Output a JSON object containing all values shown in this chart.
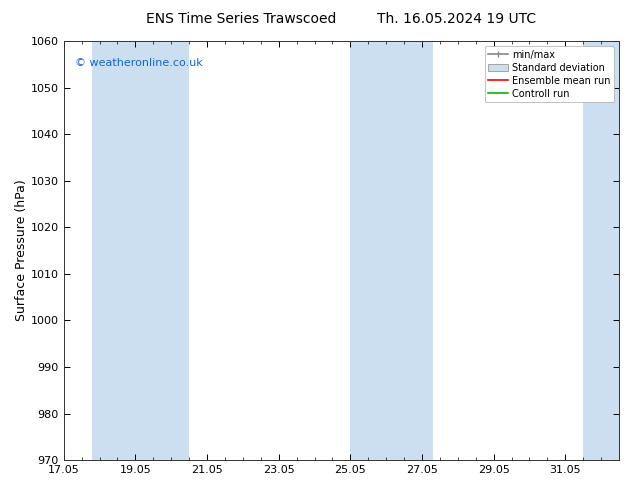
{
  "title_left": "ENS Time Series Trawscoed",
  "title_right": "Th. 16.05.2024 19 UTC",
  "ylabel": "Surface Pressure (hPa)",
  "ylim": [
    970,
    1060
  ],
  "yticks": [
    970,
    980,
    990,
    1000,
    1010,
    1020,
    1030,
    1040,
    1050,
    1060
  ],
  "xlim_start": 0,
  "xlim_end": 15.5,
  "xtick_positions": [
    0,
    2,
    4,
    6,
    8,
    10,
    12,
    14
  ],
  "xtick_labels": [
    "17.05",
    "19.05",
    "21.05",
    "23.05",
    "25.05",
    "27.05",
    "29.05",
    "31.05"
  ],
  "shaded_bands": [
    {
      "x_start": 0.8,
      "x_end": 1.5
    },
    {
      "x_start": 1.5,
      "x_end": 3.5
    },
    {
      "x_start": 8.0,
      "x_end": 9.5
    },
    {
      "x_start": 9.5,
      "x_end": 10.3
    },
    {
      "x_start": 14.5,
      "x_end": 15.5
    }
  ],
  "shade_color": "#ccdff0",
  "background_color": "#ffffff",
  "plot_bg_color": "#ffffff",
  "watermark": "© weatheronline.co.uk",
  "watermark_color": "#1166cc",
  "legend_labels": [
    "min/max",
    "Standard deviation",
    "Ensemble mean run",
    "Controll run"
  ],
  "legend_line_colors": [
    "#888888",
    "#aabbcc",
    "#ff0000",
    "#00bb00"
  ],
  "title_fontsize": 10,
  "tick_fontsize": 8,
  "ylabel_fontsize": 9
}
